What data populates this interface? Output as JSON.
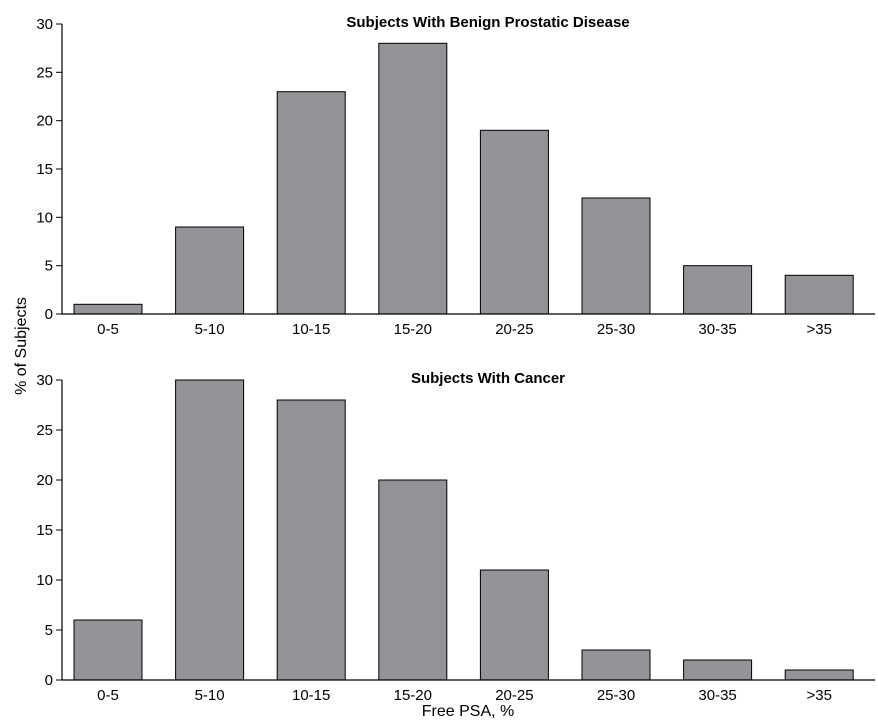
{
  "chart_data": [
    {
      "type": "bar",
      "title": "Subjects With Benign Prostatic Disease",
      "categories": [
        "0-5",
        "5-10",
        "10-15",
        "15-20",
        "20-25",
        "25-30",
        "30-35",
        ">35"
      ],
      "values": [
        1,
        9,
        23,
        28,
        19,
        12,
        5,
        4
      ],
      "ylim": [
        0,
        30
      ],
      "yticks": [
        0,
        5,
        10,
        15,
        20,
        25,
        30
      ],
      "grid": false,
      "color": "#939398"
    },
    {
      "type": "bar",
      "title": "Subjects With Cancer",
      "categories": [
        "0-5",
        "5-10",
        "10-15",
        "15-20",
        "20-25",
        "25-30",
        "30-35",
        ">35"
      ],
      "values": [
        6,
        30,
        28,
        20,
        11,
        3,
        2,
        1
      ],
      "ylim": [
        0,
        30
      ],
      "yticks": [
        0,
        5,
        10,
        15,
        20,
        25,
        30
      ],
      "grid": false,
      "color": "#939398"
    }
  ],
  "shared_axes": {
    "ylabel": "% of Subjects",
    "xlabel": "Free PSA, %"
  }
}
